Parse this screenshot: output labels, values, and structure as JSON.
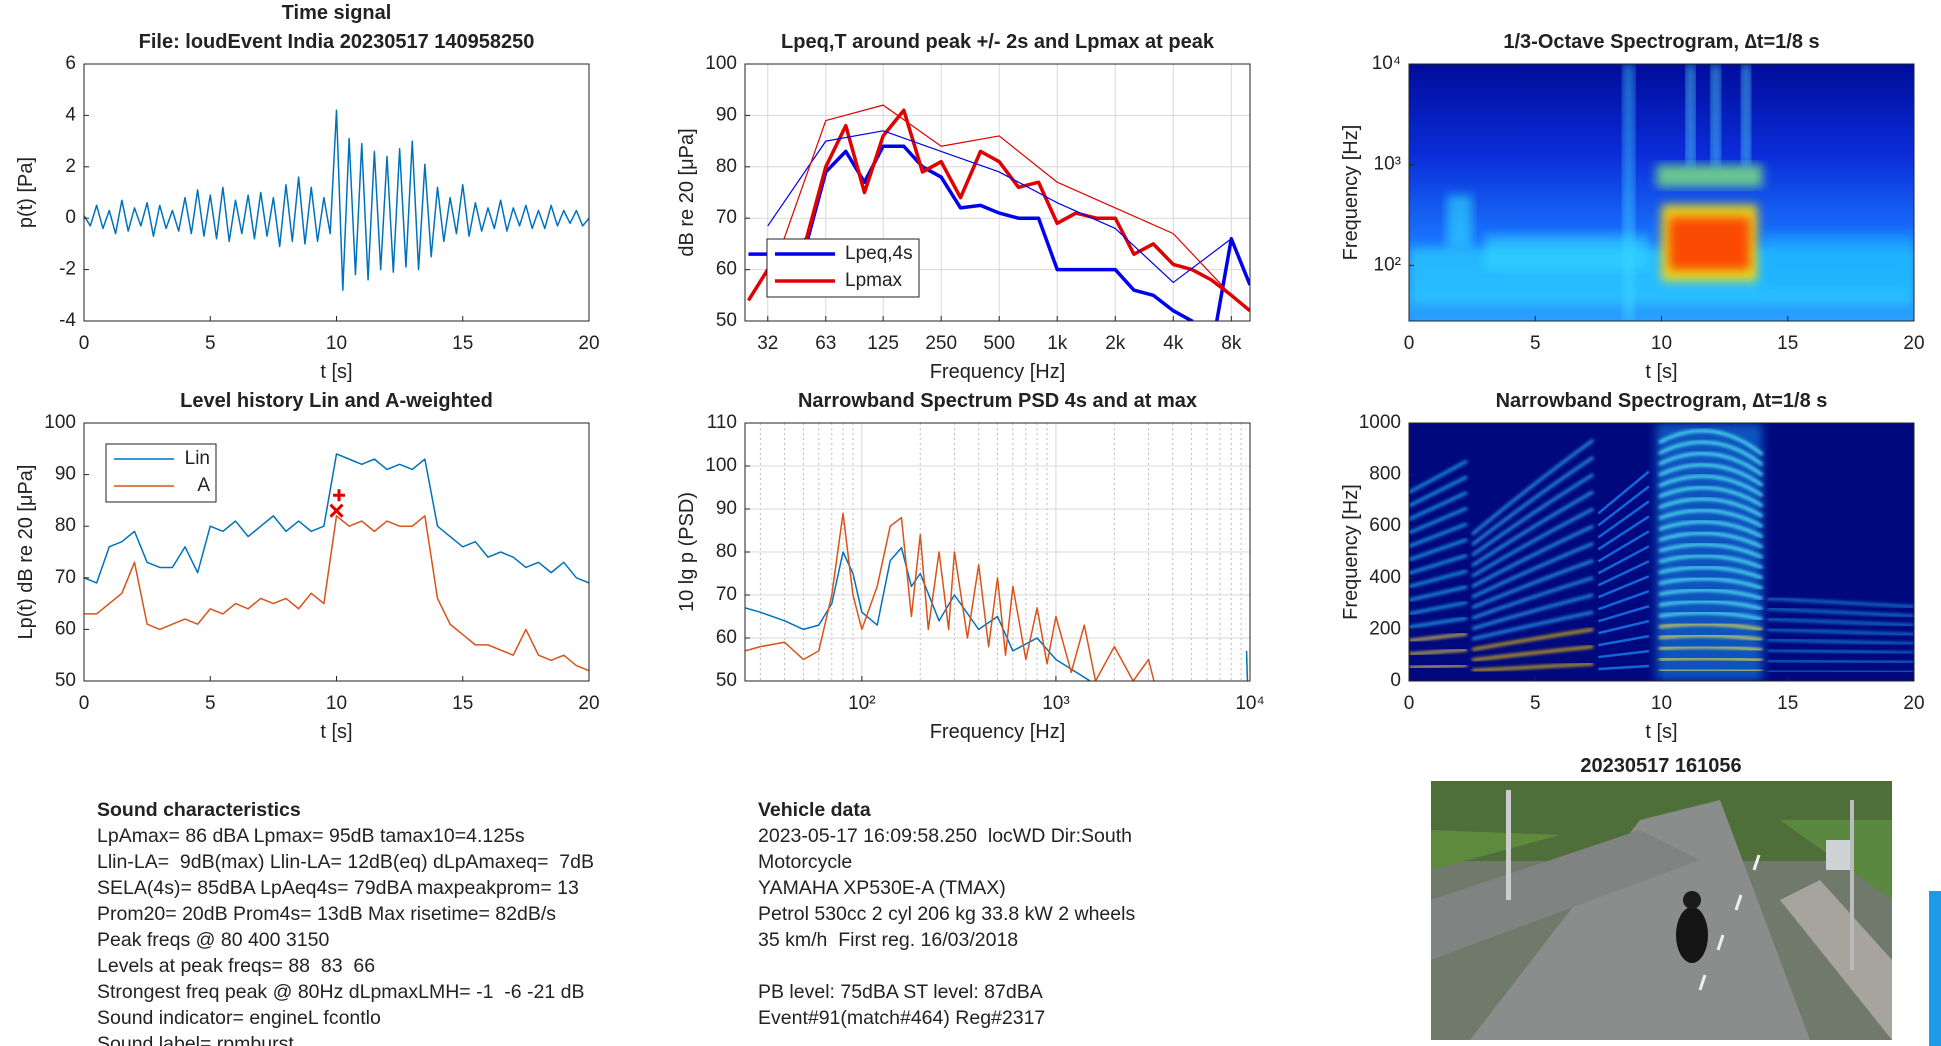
{
  "chart_data": [
    {
      "type": "line",
      "title": "Time signal",
      "subtitle": "File: loudEvent India 20230517 140958250",
      "x_label": "t [s]",
      "y_label": "p(t) [Pa]",
      "xlim": [
        0,
        20
      ],
      "xticks": [
        0,
        5,
        10,
        15,
        20
      ],
      "ylim": [
        -4,
        6
      ],
      "yticks": [
        -4,
        -2,
        0,
        2,
        4,
        6
      ],
      "x": [
        0,
        0.25,
        0.5,
        0.75,
        1,
        1.25,
        1.5,
        1.75,
        2,
        2.25,
        2.5,
        2.75,
        3,
        3.25,
        3.5,
        3.75,
        4,
        4.25,
        4.5,
        4.75,
        5,
        5.25,
        5.5,
        5.75,
        6,
        6.25,
        6.5,
        6.75,
        7,
        7.25,
        7.5,
        7.75,
        8,
        8.25,
        8.5,
        8.75,
        9,
        9.25,
        9.5,
        9.75,
        10,
        10.25,
        10.5,
        10.75,
        11,
        11.25,
        11.5,
        11.75,
        12,
        12.25,
        12.5,
        12.75,
        13,
        13.25,
        13.5,
        13.75,
        14,
        14.25,
        14.5,
        14.75,
        15,
        15.25,
        15.5,
        15.75,
        16,
        16.25,
        16.5,
        16.75,
        17,
        17.25,
        17.5,
        17.75,
        18,
        18.25,
        18.5,
        18.75,
        19,
        19.25,
        19.5,
        19.75,
        20
      ],
      "series": [
        {
          "color": "#0072bd",
          "values": [
            0.1,
            -0.3,
            0.5,
            -0.4,
            0.3,
            -0.6,
            0.7,
            -0.5,
            0.4,
            -0.3,
            0.6,
            -0.7,
            0.5,
            -0.4,
            0.3,
            -0.5,
            0.8,
            -0.6,
            1.1,
            -0.7,
            0.9,
            -0.8,
            1.2,
            -0.9,
            0.7,
            -0.6,
            0.9,
            -0.8,
            1.0,
            -0.7,
            0.8,
            -1.1,
            1.3,
            -0.9,
            1.6,
            -1.0,
            1.2,
            -0.9,
            0.8,
            -0.6,
            4.2,
            -2.8,
            3.1,
            -2.2,
            2.9,
            -2.4,
            2.6,
            -2.0,
            2.4,
            -2.1,
            2.7,
            -1.9,
            3.0,
            -2.0,
            2.1,
            -1.5,
            1.2,
            -0.9,
            0.8,
            -0.6,
            1.3,
            -0.7,
            0.6,
            -0.5,
            0.4,
            -0.4,
            0.7,
            -0.5,
            0.4,
            -0.3,
            0.5,
            -0.4,
            0.3,
            -0.4,
            0.5,
            -0.3,
            0.3,
            -0.2,
            0.3,
            -0.3,
            0.0
          ]
        }
      ]
    },
    {
      "type": "line",
      "title": "Lpeq,T around peak +/- 2s and Lpmax at peak",
      "x_label": "Frequency [Hz]",
      "y_label": "dB re 20 [μPa]",
      "xscale": "log",
      "xlim": [
        24,
        10000
      ],
      "xticks": [
        {
          "value": 31.5,
          "label": "32"
        },
        63,
        125,
        250,
        500,
        {
          "value": 1000,
          "label": "1k"
        },
        {
          "value": 2000,
          "label": "2k"
        },
        {
          "value": 4000,
          "label": "4k"
        },
        {
          "value": 8000,
          "label": "8k"
        }
      ],
      "ylim": [
        50,
        100
      ],
      "yticks": [
        50,
        60,
        70,
        80,
        90,
        100
      ],
      "grid": true,
      "legend_loc": "lower left",
      "series": [
        {
          "name": "Lpeq,4s",
          "color": "#0000ee",
          "width": 3.5,
          "x": [
            25,
            31.5,
            40,
            50,
            63,
            80,
            100,
            125,
            160,
            200,
            250,
            315,
            400,
            500,
            630,
            800,
            1000,
            1250,
            1600,
            2000,
            2500,
            3150,
            4000,
            5000,
            6300,
            8000,
            10000
          ],
          "values": [
            63,
            63,
            64,
            65,
            79,
            83,
            77,
            84,
            84,
            80,
            78,
            72,
            72.5,
            71,
            70,
            70,
            60,
            60,
            60,
            60,
            56,
            55,
            52,
            50,
            44,
            66,
            57
          ]
        },
        {
          "name": "Lpmax",
          "color": "#e00000",
          "width": 3.5,
          "x": [
            25,
            31.5,
            40,
            50,
            63,
            80,
            100,
            125,
            160,
            200,
            250,
            315,
            400,
            500,
            630,
            800,
            1000,
            1250,
            1600,
            2000,
            2500,
            3150,
            4000,
            5000,
            6300,
            8000,
            10000
          ],
          "values": [
            54,
            60,
            64,
            66,
            80,
            88,
            75,
            86,
            91,
            79,
            81,
            74,
            83,
            81,
            76,
            77,
            69,
            71,
            70,
            70,
            63,
            65,
            61,
            60,
            58,
            55,
            52
          ]
        },
        {
          "color": "#0000ee",
          "width": 1.2,
          "x": [
            31.5,
            63,
            125,
            250,
            500,
            1000,
            2000,
            4000,
            8000
          ],
          "values": [
            68.5,
            85,
            87,
            83,
            79,
            73,
            68,
            57.5,
            66
          ]
        },
        {
          "color": "#e00000",
          "width": 1.2,
          "x": [
            31.5,
            63,
            125,
            250,
            500,
            1000,
            2000,
            4000,
            8000
          ],
          "values": [
            57,
            89,
            92,
            84,
            86,
            77,
            72,
            67,
            55
          ]
        }
      ]
    },
    {
      "type": "spectrogram",
      "title": "1/3-Octave Spectrogram, ∆t=1/8 s",
      "x_label": "t [s]",
      "y_label": "Frequency [Hz]",
      "xlim": [
        0,
        20
      ],
      "xticks": [
        0,
        5,
        10,
        15,
        20
      ],
      "yscale": "log",
      "ylim": [
        28,
        10000
      ],
      "yticks": [
        {
          "value": 100,
          "label": "10²"
        },
        {
          "value": 1000,
          "label": "10³"
        },
        {
          "value": 10000,
          "label": "10⁴"
        }
      ]
    },
    {
      "type": "line",
      "title": "Level history Lin and A-weighted",
      "x_label": "t [s]",
      "y_label": "Lp(t) dB re 20 [μPa]",
      "xlim": [
        0,
        20
      ],
      "xticks": [
        0,
        5,
        10,
        15,
        20
      ],
      "ylim": [
        50,
        100
      ],
      "yticks": [
        50,
        60,
        70,
        80,
        90,
        100
      ],
      "legend_loc": "upper left",
      "x": [
        0,
        0.5,
        1,
        1.5,
        2,
        2.5,
        3,
        3.5,
        4,
        4.5,
        5,
        5.5,
        6,
        6.5,
        7,
        7.5,
        8,
        8.5,
        9,
        9.5,
        10,
        10.5,
        11,
        11.5,
        12,
        12.5,
        13,
        13.5,
        14,
        14.5,
        15,
        15.5,
        16,
        16.5,
        17,
        17.5,
        18,
        18.5,
        19,
        19.5,
        20
      ],
      "series": [
        {
          "name": "Lin",
          "color": "#0072bd",
          "values": [
            70,
            69,
            76,
            77,
            79,
            73,
            72,
            72,
            76,
            71,
            80,
            79,
            81,
            78,
            80,
            82,
            79,
            81,
            79,
            80,
            94,
            93,
            92,
            93,
            91,
            92,
            91,
            93,
            80,
            78,
            76,
            77,
            74,
            75,
            74,
            72,
            73,
            71,
            73,
            70,
            69
          ]
        },
        {
          "name": "A",
          "color": "#d95319",
          "values": [
            63,
            63,
            65,
            67,
            73,
            61,
            60,
            61,
            62,
            61,
            64,
            63,
            65,
            64,
            66,
            65,
            66,
            64,
            67,
            65,
            82,
            80,
            81,
            79,
            81,
            80,
            80,
            82,
            66,
            61,
            59,
            57,
            57,
            56,
            55,
            60,
            55,
            54,
            55,
            53,
            52
          ]
        }
      ],
      "markers": [
        {
          "x": 10.1,
          "y": 86,
          "symbol": "+",
          "color": "#e00000"
        },
        {
          "x": 10,
          "y": 83,
          "symbol": "x",
          "color": "#e00000"
        }
      ]
    },
    {
      "type": "line",
      "title": "Narrowband Spectrum PSD 4s and at max",
      "x_label": "Frequency [Hz]",
      "y_label": "10 lg p (PSD)",
      "xscale": "log",
      "xlim": [
        25,
        10000
      ],
      "xticks": [
        {
          "value": 100,
          "label": "10²"
        },
        {
          "value": 1000,
          "label": "10³"
        },
        {
          "value": 10000,
          "label": "10⁴"
        }
      ],
      "ylim": [
        50,
        110
      ],
      "yticks": [
        50,
        60,
        70,
        80,
        90,
        100,
        110
      ],
      "grid": true,
      "minor_grid": true,
      "series": [
        {
          "color": "#0072bd",
          "x": [
            25,
            30,
            40,
            50,
            60,
            70,
            80,
            90,
            100,
            120,
            140,
            160,
            180,
            200,
            250,
            300,
            400,
            500,
            600,
            800,
            1000,
            1500,
            9500,
            9600,
            9700
          ],
          "values": [
            67,
            66,
            64,
            62,
            63,
            68,
            80,
            75,
            66,
            63,
            78,
            81,
            72,
            75,
            64,
            70,
            62,
            65,
            57,
            60,
            55,
            50,
            null,
            57,
            50
          ]
        },
        {
          "color": "#d95319",
          "x": [
            25,
            30,
            40,
            50,
            60,
            70,
            80,
            90,
            100,
            120,
            140,
            160,
            180,
            200,
            220,
            250,
            280,
            300,
            350,
            400,
            450,
            500,
            550,
            600,
            700,
            800,
            900,
            1000,
            1200,
            1400,
            1600,
            2000,
            2500,
            3000,
            3200
          ],
          "values": [
            57,
            58,
            59,
            55,
            57,
            70,
            89,
            70,
            62,
            72,
            86,
            88,
            65,
            84,
            62,
            80,
            62,
            80,
            60,
            77,
            58,
            74,
            56,
            72,
            55,
            67,
            54,
            65,
            52,
            63,
            50,
            58,
            50,
            55,
            50
          ]
        }
      ]
    },
    {
      "type": "spectrogram",
      "title": "Narrowband Spectrogram, ∆t=1/8 s",
      "x_label": "t [s]",
      "y_label": "Frequency [Hz]",
      "xlim": [
        0,
        20
      ],
      "xticks": [
        0,
        5,
        10,
        15,
        20
      ],
      "ylim": [
        0,
        1000
      ],
      "yticks": [
        0,
        200,
        400,
        600,
        800,
        1000
      ]
    }
  ],
  "sound_characteristics": {
    "title": "Sound characteristics",
    "lines": [
      "LpAmax= 86 dBA Lpmax= 95dB tamax10=4.125s",
      "Llin-LA=  9dB(max) Llin-LA= 12dB(eq) dLpAmaxeq=  7dB",
      "SELA(4s)= 85dBA LpAeq4s= 79dBA maxpeakprom= 13",
      "Prom20= 20dB Prom4s= 13dB Max risetime= 82dB/s",
      "Peak freqs @ 80 400 3150",
      "Levels at peak freqs= 88  83  66",
      "Strongest freq peak @ 80Hz dLpmaxLMH= -1  -6 -21 dB",
      "Sound indicator= engineL fcontlo",
      "Sound label= rpmburst"
    ]
  },
  "vehicle_data": {
    "title": "Vehicle data",
    "paragraphs": [
      [
        "2023-05-17 16:09:58.250  locWD Dir:South",
        "Motorcycle",
        "YAMAHA XP530E-A (TMAX)",
        "Petrol 530cc 2 cyl 206 kg 33.8 kW 2 wheels",
        "35 km/h  First reg. 16/03/2018"
      ],
      [
        "PB level: 75dBA ST level: 87dBA",
        "Event#91(match#464) Reg#2317"
      ]
    ]
  },
  "photo": {
    "title": "20230517 161056"
  }
}
